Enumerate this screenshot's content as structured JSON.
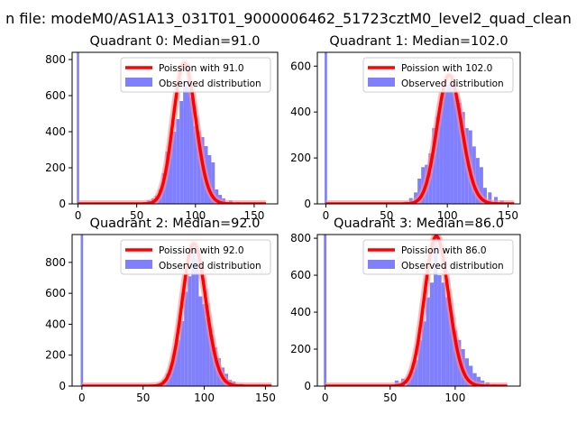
{
  "figure": {
    "suptitle": "n file: modeM0/AS1A13_031T01_9000006462_51723cztM0_level2_quad_clean"
  },
  "colors": {
    "hist": "#8080ff",
    "fit": "#ff0000",
    "fit_glow": "#ff9090",
    "axis": "#000000",
    "background": "#ffffff"
  },
  "chart_data": [
    {
      "type": "bar",
      "title": "Quadrant 0: Median=91.0",
      "xlim": [
        -5,
        170
      ],
      "ylim": [
        0,
        840
      ],
      "xticks": [
        0,
        50,
        100,
        150
      ],
      "yticks": [
        0,
        200,
        400,
        600,
        800
      ],
      "spike": {
        "x": 0,
        "width": 2,
        "height": 840
      },
      "bins": {
        "x": [
          5,
          10,
          15,
          20,
          25,
          30,
          35,
          40,
          45,
          50,
          55,
          60,
          64,
          67,
          70,
          73,
          76,
          79,
          82,
          85,
          88,
          91,
          94,
          97,
          100,
          103,
          106,
          109,
          112,
          115,
          118,
          121,
          124,
          130,
          136,
          142,
          150
        ],
        "width": 3,
        "values": [
          3,
          3,
          3,
          5,
          4,
          3,
          3,
          3,
          3,
          4,
          8,
          20,
          30,
          45,
          80,
          170,
          290,
          370,
          400,
          470,
          570,
          660,
          780,
          590,
          430,
          400,
          370,
          320,
          270,
          230,
          80,
          50,
          30,
          20,
          10,
          6,
          3
        ]
      },
      "fit": {
        "name": "Poission with 91.0",
        "lambda": 91.0,
        "xmin": 0,
        "xmax": 160
      },
      "legend": {
        "position": "top-right",
        "entries": [
          "Poission with 91.0",
          "Observed distribution"
        ]
      }
    },
    {
      "type": "bar",
      "title": "Quadrant 1: Median=102.0",
      "xlim": [
        -7,
        160
      ],
      "ylim": [
        0,
        660
      ],
      "xticks": [
        0,
        50,
        100,
        150
      ],
      "yticks": [
        0,
        200,
        400,
        600
      ],
      "spike": {
        "x": 0,
        "width": 2,
        "height": 660
      },
      "bins": {
        "x": [
          10,
          20,
          30,
          40,
          50,
          60,
          66,
          70,
          74,
          77,
          80,
          83,
          86,
          89,
          92,
          95,
          98,
          101,
          104,
          107,
          110,
          113,
          116,
          119,
          122,
          125,
          128,
          131,
          135,
          140,
          145,
          150
        ],
        "width": 3,
        "values": [
          2,
          2,
          3,
          3,
          3,
          5,
          10,
          25,
          50,
          110,
          160,
          170,
          220,
          330,
          380,
          440,
          500,
          520,
          560,
          480,
          440,
          400,
          330,
          320,
          250,
          200,
          160,
          70,
          50,
          30,
          15,
          5
        ]
      },
      "fit": {
        "name": "Poission with 102.0",
        "lambda": 102.0,
        "xmin": 0,
        "xmax": 155
      },
      "legend": {
        "position": "top-right",
        "entries": [
          "Poission with 102.0",
          "Observed distribution"
        ]
      }
    },
    {
      "type": "bar",
      "title": "Quadrant 2: Median=92.0",
      "xlim": [
        -8,
        160
      ],
      "ylim": [
        0,
        980
      ],
      "xticks": [
        0,
        50,
        100,
        150
      ],
      "yticks": [
        0,
        200,
        400,
        600,
        800
      ],
      "spike": {
        "x": 0,
        "width": 2,
        "height": 980
      },
      "bins": {
        "x": [
          10,
          20,
          30,
          40,
          50,
          60,
          64,
          67,
          70,
          73,
          76,
          79,
          82,
          85,
          88,
          91,
          94,
          97,
          100,
          103,
          106,
          109,
          112,
          115,
          118,
          121,
          124,
          130,
          136,
          142,
          150
        ],
        "width": 3,
        "values": [
          2,
          2,
          3,
          3,
          5,
          10,
          20,
          40,
          80,
          130,
          220,
          300,
          420,
          610,
          710,
          920,
          820,
          580,
          530,
          440,
          330,
          250,
          180,
          120,
          80,
          40,
          30,
          15,
          8,
          4,
          2
        ]
      },
      "fit": {
        "name": "Poission with 92.0",
        "lambda": 92.0,
        "xmin": 0,
        "xmax": 155
      },
      "legend": {
        "position": "top-right",
        "entries": [
          "Poission with 92.0",
          "Observed distribution"
        ]
      }
    },
    {
      "type": "bar",
      "title": "Quadrant 3: Median=86.0",
      "xlim": [
        -6,
        150
      ],
      "ylim": [
        0,
        820
      ],
      "xticks": [
        0,
        50,
        100
      ],
      "yticks": [
        0,
        200,
        400,
        600,
        800
      ],
      "spike": {
        "x": 0,
        "width": 2,
        "height": 820
      },
      "bins": {
        "x": [
          10,
          20,
          30,
          40,
          50,
          55,
          60,
          64,
          67,
          70,
          73,
          76,
          79,
          82,
          85,
          88,
          91,
          94,
          97,
          100,
          103,
          106,
          109,
          112,
          115,
          118,
          121,
          125,
          130,
          135
        ],
        "width": 3,
        "values": [
          2,
          2,
          3,
          3,
          5,
          30,
          40,
          50,
          80,
          140,
          250,
          350,
          480,
          560,
          810,
          600,
          560,
          480,
          390,
          300,
          250,
          200,
          150,
          110,
          70,
          50,
          30,
          20,
          10,
          5
        ]
      },
      "fit": {
        "name": "Poission with 86.0",
        "lambda": 86.0,
        "xmin": 0,
        "xmax": 140
      },
      "legend": {
        "position": "top-right",
        "entries": [
          "Poission with 86.0",
          "Observed distribution"
        ]
      }
    }
  ]
}
